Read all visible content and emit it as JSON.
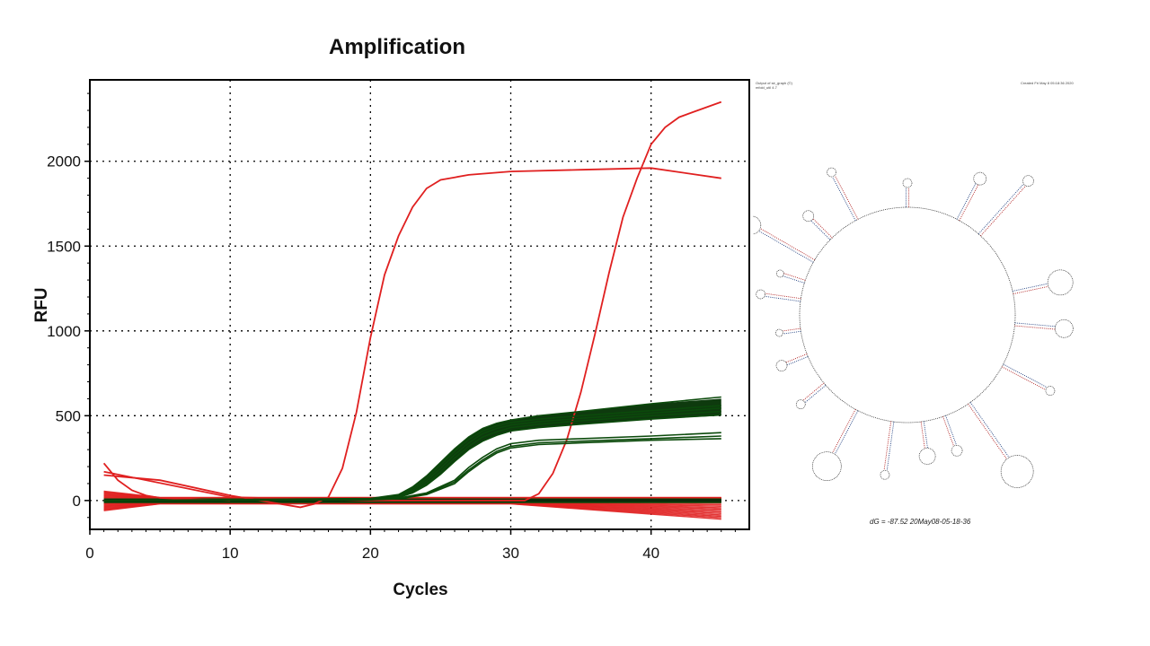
{
  "chart_data": {
    "type": "line",
    "title": "Amplification",
    "xlabel": "Cycles",
    "ylabel": "RFU",
    "xlim": [
      0,
      47
    ],
    "ylim": [
      -170,
      2480
    ],
    "xticks": [
      0,
      10,
      20,
      30,
      40
    ],
    "yticks": [
      0,
      500,
      1000,
      1500,
      2000
    ],
    "grid": true,
    "grid_style": "dotted",
    "colors": {
      "red": "#e02020",
      "green": "#0b4a0b",
      "light_green": "#3e7a3e"
    },
    "series": [
      {
        "color": "red",
        "x": [
          1,
          5,
          10,
          15,
          16,
          17,
          18,
          19,
          20,
          21,
          22,
          23,
          24,
          25,
          26,
          27,
          30,
          35,
          40,
          45
        ],
        "y": [
          150,
          120,
          30,
          -40,
          -20,
          20,
          190,
          520,
          960,
          1330,
          1560,
          1730,
          1840,
          1890,
          1905,
          1920,
          1940,
          1950,
          1960,
          1900
        ]
      },
      {
        "color": "red",
        "x": [
          1,
          10,
          20,
          31,
          32,
          33,
          34,
          35,
          36,
          37,
          38,
          39,
          40,
          41,
          42,
          43,
          45
        ],
        "y": [
          170,
          20,
          0,
          0,
          40,
          160,
          360,
          640,
          980,
          1340,
          1670,
          1900,
          2100,
          2200,
          2260,
          2290,
          2350
        ]
      },
      {
        "color": "red",
        "x": [
          1,
          2,
          3,
          4,
          5,
          8,
          10
        ],
        "y": [
          220,
          120,
          60,
          30,
          15,
          5,
          0
        ]
      },
      {
        "color": "green",
        "x": [
          1,
          20,
          22,
          23,
          24,
          25,
          26,
          27,
          28,
          29,
          30,
          32,
          35,
          40,
          45
        ],
        "y": [
          0,
          10,
          30,
          70,
          130,
          210,
          290,
          360,
          410,
          440,
          460,
          480,
          500,
          530,
          560
        ]
      },
      {
        "color": "green",
        "x": [
          1,
          20,
          22,
          23,
          24,
          25,
          26,
          27,
          28,
          29,
          30,
          32,
          35,
          40,
          45
        ],
        "y": [
          0,
          8,
          25,
          60,
          115,
          190,
          270,
          340,
          395,
          425,
          445,
          465,
          485,
          515,
          545
        ]
      },
      {
        "color": "green",
        "x": [
          1,
          20,
          22,
          23,
          24,
          25,
          26,
          27,
          28,
          29,
          30,
          32,
          35,
          40,
          45
        ],
        "y": [
          0,
          6,
          20,
          50,
          100,
          170,
          250,
          320,
          375,
          405,
          430,
          450,
          470,
          500,
          525
        ]
      },
      {
        "color": "green",
        "x": [
          1,
          20,
          22,
          23,
          24,
          25,
          26,
          27,
          28,
          29,
          30,
          32,
          35,
          40,
          45
        ],
        "y": [
          0,
          5,
          18,
          45,
          90,
          155,
          230,
          300,
          350,
          385,
          410,
          430,
          450,
          480,
          505
        ]
      },
      {
        "color": "green",
        "x": [
          1,
          20,
          22,
          23,
          24,
          25,
          26,
          27,
          28,
          29,
          30,
          32,
          35,
          40,
          45
        ],
        "y": [
          0,
          12,
          35,
          80,
          145,
          225,
          305,
          375,
          425,
          455,
          475,
          500,
          525,
          570,
          610
        ]
      },
      {
        "color": "green",
        "x": [
          1,
          20,
          22,
          24,
          26,
          27,
          28,
          29,
          30,
          32,
          35,
          40,
          45
        ],
        "y": [
          0,
          5,
          12,
          40,
          110,
          180,
          240,
          290,
          320,
          340,
          350,
          365,
          380
        ]
      },
      {
        "color": "green",
        "x": [
          1,
          20,
          22,
          24,
          26,
          27,
          28,
          29,
          30,
          32,
          35,
          40,
          45
        ],
        "y": [
          0,
          4,
          10,
          35,
          100,
          170,
          230,
          280,
          310,
          330,
          340,
          355,
          365
        ]
      },
      {
        "color": "green",
        "x": [
          1,
          20,
          22,
          24,
          26,
          27,
          28,
          29,
          30,
          32,
          35,
          40,
          45
        ],
        "y": [
          0,
          6,
          14,
          45,
          120,
          195,
          255,
          305,
          335,
          355,
          365,
          380,
          400
        ]
      }
    ]
  },
  "rna_panel": {
    "header_left": "Output of sir_graph (©)",
    "header_left_2": "mfold_util 4.7",
    "header_right": "Created Fri May  8 05:18:36 2020",
    "energy_label": "dG = -87.52 20May08-05-18-36"
  }
}
